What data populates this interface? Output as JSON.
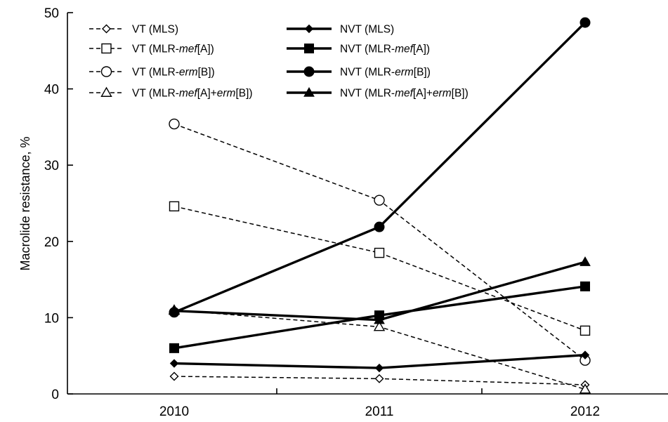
{
  "chart_data": {
    "type": "line",
    "title": "",
    "xlabel": "",
    "ylabel": "Macrolide resistance, %",
    "x": [
      "2010",
      "2011",
      "2012"
    ],
    "yticks": [
      "0",
      "10",
      "20",
      "30",
      "40",
      "50"
    ],
    "ylim": [
      0,
      50
    ],
    "grid": false,
    "legend_position": "top-left",
    "series": [
      {
        "name_parts": [
          {
            "t": "VT (MLS)"
          }
        ],
        "group": "VT",
        "marker": "diamond",
        "values": [
          2.3,
          2.0,
          1.2
        ]
      },
      {
        "name_parts": [
          {
            "t": "VT (MLR-"
          },
          {
            "t": "mef",
            "i": true
          },
          {
            "t": "[A])"
          }
        ],
        "group": "VT",
        "marker": "square",
        "values": [
          24.6,
          18.5,
          8.3
        ]
      },
      {
        "name_parts": [
          {
            "t": "VT (MLR-"
          },
          {
            "t": "erm",
            "i": true
          },
          {
            "t": "[B])"
          }
        ],
        "group": "VT",
        "marker": "circle",
        "values": [
          35.4,
          25.4,
          4.4
        ]
      },
      {
        "name_parts": [
          {
            "t": "VT (MLR-"
          },
          {
            "t": "mef",
            "i": true
          },
          {
            "t": "[A]+"
          },
          {
            "t": "erm",
            "i": true
          },
          {
            "t": "[B])"
          }
        ],
        "group": "VT",
        "marker": "triangle",
        "values": [
          11.0,
          8.8,
          0.6
        ]
      },
      {
        "name_parts": [
          {
            "t": "NVT (MLS)"
          }
        ],
        "group": "NVT",
        "marker": "diamond",
        "values": [
          4.0,
          3.4,
          5.1
        ]
      },
      {
        "name_parts": [
          {
            "t": "NVT (MLR-"
          },
          {
            "t": "mef",
            "i": true
          },
          {
            "t": "[A])"
          }
        ],
        "group": "NVT",
        "marker": "square",
        "values": [
          6.0,
          10.3,
          14.1
        ]
      },
      {
        "name_parts": [
          {
            "t": "NVT (MLR-"
          },
          {
            "t": "erm",
            "i": true
          },
          {
            "t": "[B])"
          }
        ],
        "group": "NVT",
        "marker": "circle",
        "values": [
          10.7,
          21.9,
          48.7
        ]
      },
      {
        "name_parts": [
          {
            "t": "NVT (MLR-"
          },
          {
            "t": "mef",
            "i": true
          },
          {
            "t": "[A]+"
          },
          {
            "t": "erm",
            "i": true
          },
          {
            "t": "[B])"
          }
        ],
        "group": "NVT",
        "marker": "triangle",
        "values": [
          10.9,
          9.7,
          17.3
        ]
      }
    ]
  }
}
